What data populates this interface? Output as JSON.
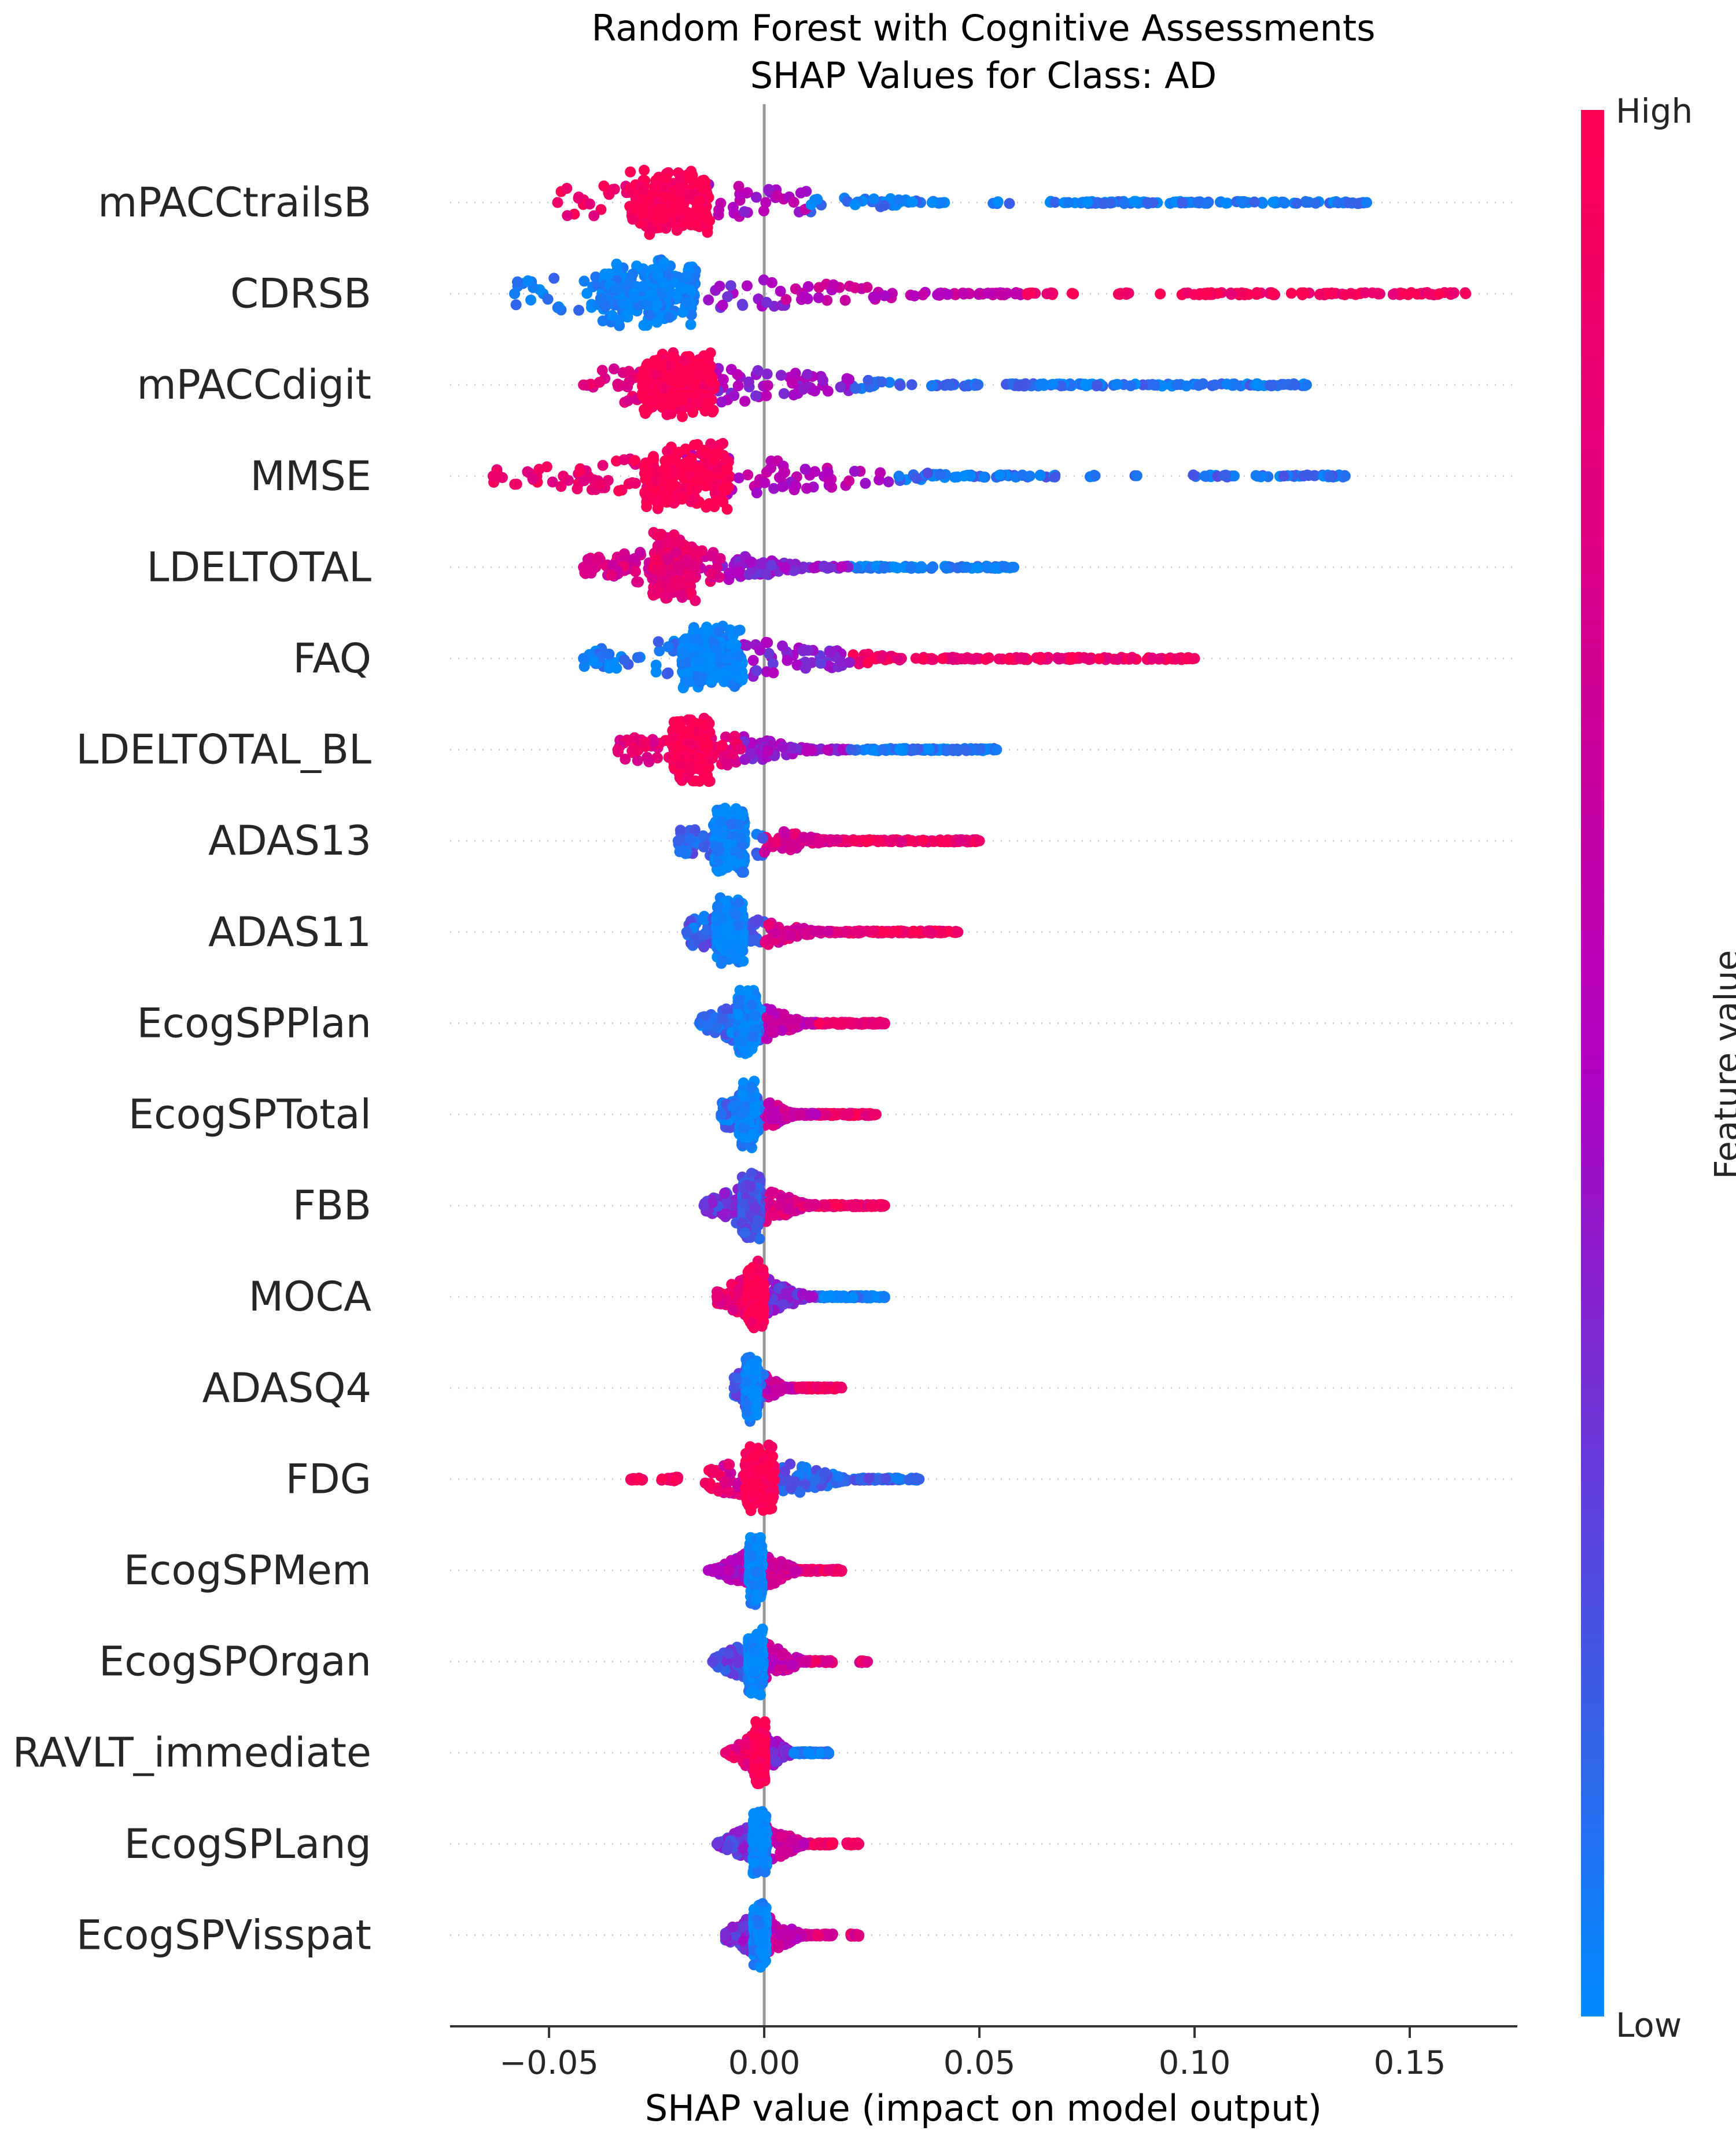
{
  "chart_data": {
    "type": "scatter",
    "subtype": "shap-beeswarm",
    "title": "Random Forest with Cognitive Assessments",
    "subtitle": "SHAP Values for Class: AD",
    "xlabel": "SHAP value (impact on model output)",
    "xlim": [
      -0.073,
      0.175
    ],
    "x_ticks": [
      "−0.05",
      "0.00",
      "0.05",
      "0.10",
      "0.15"
    ],
    "x_tick_values": [
      -0.05,
      0.0,
      0.05,
      0.1,
      0.15
    ],
    "zero_line": true,
    "colorbar": {
      "label": "Feature value",
      "high_label": "High",
      "low_label": "Low",
      "high_color": "#ff0052",
      "mid_color": "#b000c0",
      "low_color": "#008bfb"
    },
    "features": [
      {
        "name": "mPACCtrailsB",
        "min": -0.048,
        "max": 0.14,
        "core": -0.022,
        "corecolor": 1.0,
        "seg": [
          [
            -0.048,
            -0.015,
            0.9
          ],
          [
            -0.015,
            0.01,
            0.5
          ],
          [
            0.01,
            0.14,
            0.05
          ]
        ],
        "gaps": [
          [
            0.042,
            0.052
          ],
          [
            0.058,
            0.066
          ]
        ]
      },
      {
        "name": "CDRSB",
        "min": -0.058,
        "max": 0.163,
        "core": -0.027,
        "corecolor": 0.0,
        "seg": [
          [
            -0.058,
            -0.015,
            0.05
          ],
          [
            -0.015,
            0.005,
            0.4
          ],
          [
            0.005,
            0.06,
            0.6
          ],
          [
            0.06,
            0.163,
            0.95
          ]
        ],
        "gaps": [
          [
            0.072,
            0.082
          ],
          [
            0.085,
            0.092
          ]
        ]
      },
      {
        "name": "mPACCdigit",
        "min": -0.042,
        "max": 0.126,
        "core": -0.02,
        "corecolor": 1.0,
        "seg": [
          [
            -0.042,
            -0.015,
            0.8
          ],
          [
            -0.015,
            0.02,
            0.45
          ],
          [
            0.02,
            0.126,
            0.08
          ]
        ],
        "gaps": [
          [
            0.05,
            0.056
          ]
        ]
      },
      {
        "name": "MMSE",
        "min": -0.063,
        "max": 0.135,
        "core": -0.018,
        "corecolor": 1.0,
        "seg": [
          [
            -0.063,
            -0.02,
            0.9
          ],
          [
            -0.02,
            0.03,
            0.55
          ],
          [
            0.03,
            0.135,
            0.1
          ]
        ],
        "gaps": [
          [
            0.068,
            0.075
          ],
          [
            0.078,
            0.085
          ],
          [
            0.087,
            0.097
          ]
        ]
      },
      {
        "name": "LDELTOTAL",
        "min": -0.042,
        "max": 0.058,
        "core": -0.021,
        "corecolor": 0.85,
        "seg": [
          [
            -0.042,
            -0.01,
            0.75
          ],
          [
            -0.01,
            0.02,
            0.4
          ],
          [
            0.02,
            0.058,
            0.05
          ]
        ],
        "gaps": []
      },
      {
        "name": "FAQ",
        "min": -0.042,
        "max": 0.1,
        "core": -0.012,
        "corecolor": 0.0,
        "seg": [
          [
            -0.042,
            -0.005,
            0.05
          ],
          [
            -0.005,
            0.02,
            0.4
          ],
          [
            0.02,
            0.1,
            0.92
          ]
        ],
        "gaps": []
      },
      {
        "name": "LDELTOTAL_BL",
        "min": -0.034,
        "max": 0.054,
        "core": -0.017,
        "corecolor": 1.0,
        "seg": [
          [
            -0.034,
            -0.005,
            0.85
          ],
          [
            -0.005,
            0.02,
            0.45
          ],
          [
            0.02,
            0.054,
            0.05
          ]
        ],
        "gaps": []
      },
      {
        "name": "ADAS13",
        "min": -0.02,
        "max": 0.05,
        "core": -0.008,
        "corecolor": 0.0,
        "seg": [
          [
            -0.02,
            0.0,
            0.15
          ],
          [
            0.0,
            0.018,
            0.75
          ],
          [
            0.018,
            0.05,
            0.9
          ]
        ],
        "gaps": []
      },
      {
        "name": "ADAS11",
        "min": -0.018,
        "max": 0.045,
        "core": -0.008,
        "corecolor": 0.0,
        "seg": [
          [
            -0.018,
            0.0,
            0.15
          ],
          [
            0.0,
            0.018,
            0.75
          ],
          [
            0.018,
            0.045,
            0.9
          ]
        ],
        "gaps": []
      },
      {
        "name": "EcogSPPlan",
        "min": -0.015,
        "max": 0.028,
        "core": -0.004,
        "corecolor": 0.0,
        "seg": [
          [
            -0.015,
            0.0,
            0.1
          ],
          [
            0.0,
            0.012,
            0.6
          ],
          [
            0.012,
            0.028,
            0.85
          ]
        ],
        "gaps": []
      },
      {
        "name": "EcogSPTotal",
        "min": -0.01,
        "max": 0.026,
        "core": -0.004,
        "corecolor": 0.0,
        "seg": [
          [
            -0.01,
            0.0,
            0.1
          ],
          [
            0.0,
            0.012,
            0.65
          ],
          [
            0.012,
            0.026,
            0.9
          ]
        ],
        "gaps": []
      },
      {
        "name": "FBB",
        "min": -0.014,
        "max": 0.028,
        "core": -0.003,
        "corecolor": 0.2,
        "seg": [
          [
            -0.014,
            0.0,
            0.3
          ],
          [
            0.0,
            0.012,
            0.75
          ],
          [
            0.012,
            0.028,
            0.92
          ]
        ],
        "gaps": []
      },
      {
        "name": "MOCA",
        "min": -0.011,
        "max": 0.028,
        "core": -0.002,
        "corecolor": 1.0,
        "seg": [
          [
            -0.011,
            0.0,
            0.85
          ],
          [
            0.0,
            0.012,
            0.35
          ],
          [
            0.012,
            0.028,
            0.05
          ]
        ],
        "gaps": []
      },
      {
        "name": "ADASQ4",
        "min": -0.007,
        "max": 0.018,
        "core": -0.003,
        "corecolor": 0.0,
        "seg": [
          [
            -0.007,
            0.0,
            0.2
          ],
          [
            0.0,
            0.008,
            0.65
          ],
          [
            0.008,
            0.018,
            0.9
          ]
        ],
        "gaps": []
      },
      {
        "name": "FDG",
        "min": -0.031,
        "max": 0.036,
        "core": -0.001,
        "corecolor": 1.0,
        "seg": [
          [
            -0.031,
            -0.01,
            0.95
          ],
          [
            -0.01,
            0.003,
            0.75
          ],
          [
            0.003,
            0.036,
            0.15
          ]
        ],
        "gaps": [
          [
            -0.028,
            -0.024
          ],
          [
            -0.02,
            -0.014
          ]
        ]
      },
      {
        "name": "EcogSPMem",
        "min": -0.013,
        "max": 0.018,
        "core": -0.002,
        "corecolor": 0.0,
        "seg": [
          [
            -0.013,
            0.0,
            0.5
          ],
          [
            0.0,
            0.008,
            0.7
          ],
          [
            0.008,
            0.018,
            0.9
          ]
        ],
        "gaps": []
      },
      {
        "name": "EcogSPOrgan",
        "min": -0.012,
        "max": 0.024,
        "core": -0.002,
        "corecolor": 0.0,
        "seg": [
          [
            -0.012,
            0.0,
            0.25
          ],
          [
            0.0,
            0.01,
            0.6
          ],
          [
            0.01,
            0.024,
            0.8
          ]
        ],
        "gaps": [
          [
            0.016,
            0.022
          ]
        ]
      },
      {
        "name": "RAVLT_immediate",
        "min": -0.009,
        "max": 0.015,
        "core": -0.001,
        "corecolor": 1.0,
        "seg": [
          [
            -0.009,
            0.0,
            0.85
          ],
          [
            0.0,
            0.006,
            0.4
          ],
          [
            0.006,
            0.015,
            0.05
          ]
        ],
        "gaps": []
      },
      {
        "name": "EcogSPLang",
        "min": -0.011,
        "max": 0.022,
        "core": -0.001,
        "corecolor": 0.0,
        "seg": [
          [
            -0.011,
            0.0,
            0.3
          ],
          [
            0.0,
            0.01,
            0.65
          ],
          [
            0.01,
            0.022,
            0.92
          ]
        ],
        "gaps": [
          [
            0.016,
            0.019
          ]
        ]
      },
      {
        "name": "EcogSPVisspat",
        "min": -0.009,
        "max": 0.022,
        "core": -0.001,
        "corecolor": 0.0,
        "seg": [
          [
            -0.009,
            0.0,
            0.35
          ],
          [
            0.0,
            0.01,
            0.6
          ],
          [
            0.01,
            0.022,
            0.8
          ]
        ],
        "gaps": [
          [
            0.016,
            0.02
          ]
        ]
      }
    ]
  }
}
